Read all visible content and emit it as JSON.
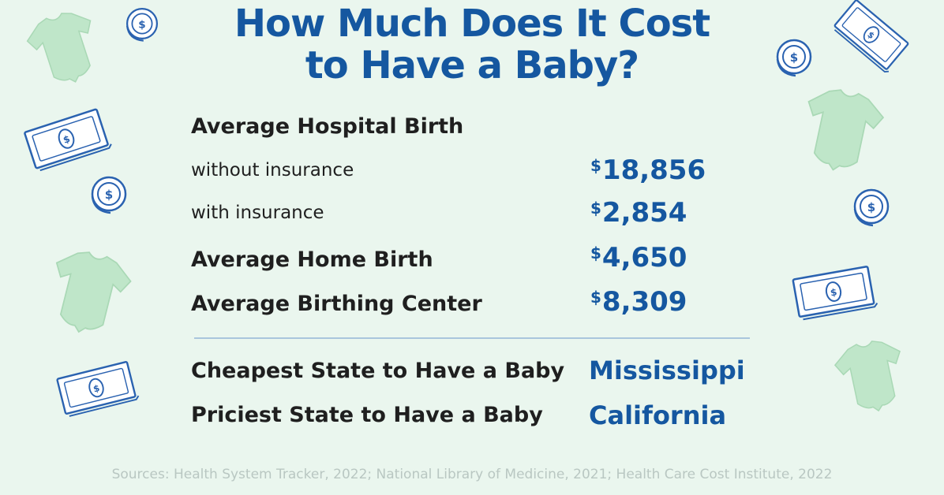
{
  "title": {
    "line1": "How Much Does It Cost",
    "line2": "to Have a Baby?"
  },
  "rows": {
    "hospital_heading": "Average Hospital Birth",
    "without_insurance": {
      "label": "without insurance",
      "currency": "$",
      "amount": "18,856"
    },
    "with_insurance": {
      "label": "with insurance",
      "currency": "$",
      "amount": "2,854"
    },
    "home_birth": {
      "label": "Average Home Birth",
      "currency": "$",
      "amount": "4,650"
    },
    "birthing_center": {
      "label": "Average Birthing Center",
      "currency": "$",
      "amount": "8,309"
    }
  },
  "states": {
    "cheapest": {
      "label": "Cheapest State to Have a Baby",
      "value": "Mississippi"
    },
    "priciest": {
      "label": "Priciest State to Have a Baby",
      "value": "California"
    }
  },
  "sources": "Sources: Health System Tracker, 2022; National Library of Medicine, 2021; Health Care Cost Institute, 2022",
  "colors": {
    "background": "#eaf6ee",
    "accent_blue": "#1557a0",
    "text_dark": "#1f1f1f",
    "onesie_green": "#bfe6c9",
    "outline_blue": "#2a62b0"
  },
  "decorations": [
    "coin-icon",
    "dollar-bill-icon",
    "baby-onesie-icon"
  ]
}
